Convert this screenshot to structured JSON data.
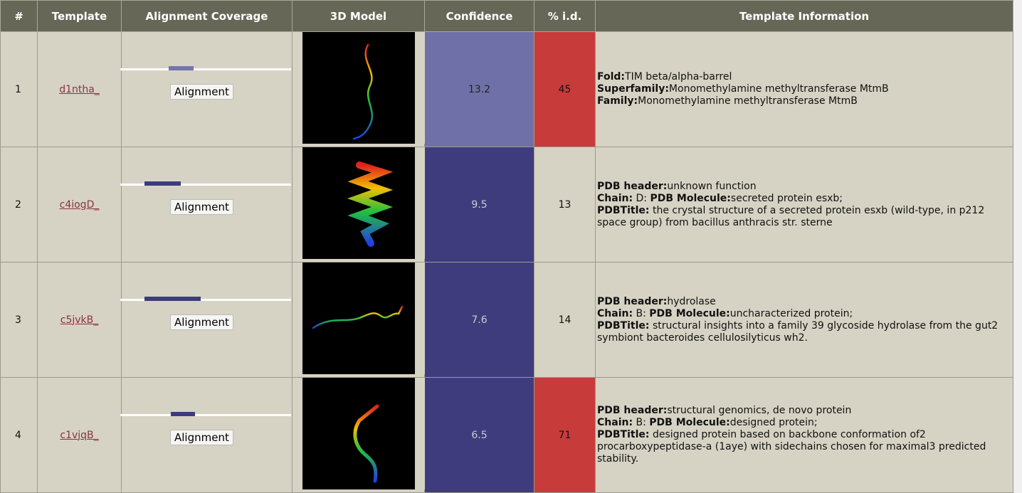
{
  "header": [
    "#",
    "Template",
    "Alignment Coverage",
    "3D Model",
    "Confidence",
    "% i.d.",
    "Template Information"
  ],
  "rows": [
    {
      "num": "1",
      "template": "d1ntha_",
      "button": "Alignment",
      "confidence": "13.2",
      "identity": "45",
      "info": [
        [
          {
            "b": "Fold:"
          },
          {
            "t": "TIM beta/alpha-barrel"
          }
        ],
        [
          {
            "b": "Superfamily:"
          },
          {
            "t": "Monomethylamine methyltransferase MtmB"
          }
        ],
        [
          {
            "b": "Family:"
          },
          {
            "t": "Monomethylamine methyltransferase MtmB"
          }
        ]
      ]
    },
    {
      "num": "2",
      "template": "c4iogD_",
      "button": "Alignment",
      "confidence": "9.5",
      "identity": "13",
      "info": [
        [
          {
            "b": "PDB header:"
          },
          {
            "t": "unknown function"
          }
        ],
        [
          {
            "b": "Chain:"
          },
          {
            "t": " D: "
          },
          {
            "b": "PDB Molecule:"
          },
          {
            "t": "secreted protein esxb;"
          }
        ],
        [
          {
            "b": "PDBTitle:"
          },
          {
            "t": " the crystal structure of a secreted protein esxb (wild-type, in p212 space group) from bacillus anthracis str. sterne"
          }
        ]
      ]
    },
    {
      "num": "3",
      "template": "c5jvkB_",
      "button": "Alignment",
      "confidence": "7.6",
      "identity": "14",
      "info": [
        [
          {
            "b": "PDB header:"
          },
          {
            "t": "hydrolase"
          }
        ],
        [
          {
            "b": "Chain:"
          },
          {
            "t": " B: "
          },
          {
            "b": "PDB Molecule:"
          },
          {
            "t": "uncharacterized protein;"
          }
        ],
        [
          {
            "b": "PDBTitle:"
          },
          {
            "t": " structural insights into a family 39 glycoside hydrolase from the gut2 symbiont bacteroides cellulosilyticus wh2."
          }
        ]
      ]
    },
    {
      "num": "4",
      "template": "c1vjqB_",
      "button": "Alignment",
      "confidence": "6.5",
      "identity": "71",
      "info": [
        [
          {
            "b": "PDB header:"
          },
          {
            "t": "structural genomics, de novo protein"
          }
        ],
        [
          {
            "b": "Chain:"
          },
          {
            "t": " B: "
          },
          {
            "b": "PDB Molecule:"
          },
          {
            "t": "designed protein;"
          }
        ],
        [
          {
            "b": "PDBTitle:"
          },
          {
            "t": " designed protein based on backbone conformation of2 procarboxypeptidase-a (1aye) with sidechains chosen for maximal3 predicted stability."
          }
        ]
      ]
    }
  ]
}
